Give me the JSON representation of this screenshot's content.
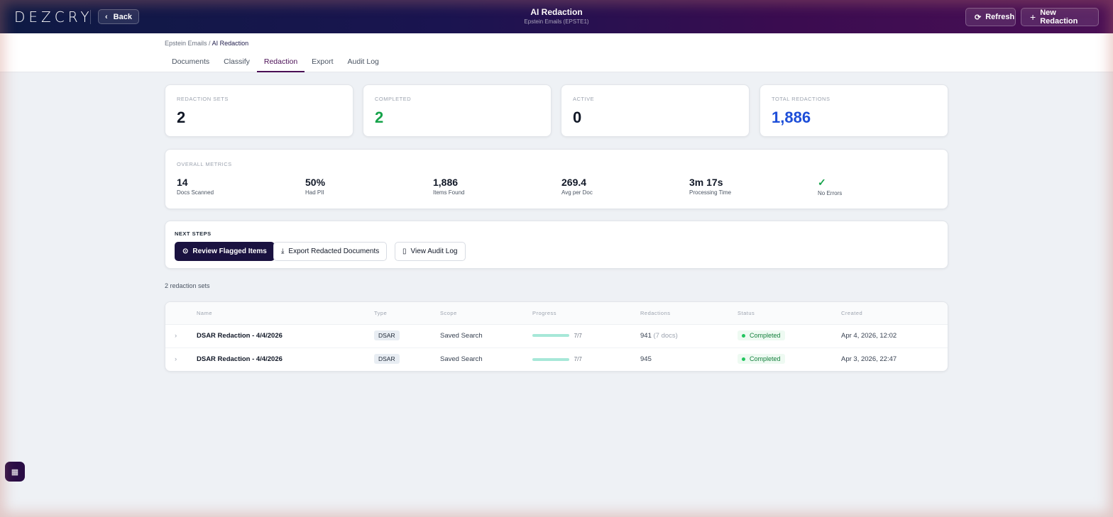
{
  "header": {
    "logo": "DEZCRY",
    "back_label": "Back",
    "title": "AI Redaction",
    "subtitle": "Epstein Emails (EPSTE1)",
    "refresh_label": "Refresh",
    "new_label": "New Redaction"
  },
  "breadcrumb": {
    "parent": "Epstein Emails",
    "sep": "/",
    "current": "AI Redaction"
  },
  "tabs": [
    {
      "label": "Documents"
    },
    {
      "label": "Classify"
    },
    {
      "label": "Redaction",
      "active": true
    },
    {
      "label": "Export"
    },
    {
      "label": "Audit Log"
    }
  ],
  "stats": [
    {
      "label": "Redaction Sets",
      "value": "2",
      "color": "#111827"
    },
    {
      "label": "Completed",
      "value": "2",
      "color": "#16a34a"
    },
    {
      "label": "Active",
      "value": "0",
      "color": "#111827"
    },
    {
      "label": "Total Redactions",
      "value": "1,886",
      "color": "#1d4ed8"
    }
  ],
  "metrics": {
    "label": "Overall Metrics",
    "items": [
      {
        "value": "14",
        "caption": "Docs Scanned"
      },
      {
        "value": "50%",
        "caption": "Had PII"
      },
      {
        "value": "1,886",
        "caption": "Items Found"
      },
      {
        "value": "269.4",
        "caption": "Avg per Doc"
      },
      {
        "value": "3m 17s",
        "caption": "Processing Time"
      },
      {
        "value": "✓",
        "caption": "No Errors"
      }
    ]
  },
  "next_steps": {
    "label": "Next Steps",
    "review": "Review Flagged Items",
    "export": "Export Redacted Documents",
    "audit": "View Audit Log"
  },
  "list": {
    "count_text": "2 redaction sets",
    "columns": [
      "Name",
      "Type",
      "Scope",
      "Progress",
      "Redactions",
      "Status",
      "Created"
    ],
    "rows": [
      {
        "name": "DSAR Redaction - 4/4/2026",
        "type": "DSAR",
        "scope": "Saved Search",
        "progress": "7/7",
        "progress_pct": 100,
        "redactions": "941",
        "docs": "(7 docs)",
        "status": "Completed",
        "created": "Apr 4, 2026, 12:02"
      },
      {
        "name": "DSAR Redaction - 4/4/2026",
        "type": "DSAR",
        "scope": "Saved Search",
        "progress": "7/7",
        "progress_pct": 100,
        "redactions": "945",
        "docs": "",
        "status": "Completed",
        "created": "Apr 3, 2026, 22:47"
      }
    ]
  }
}
